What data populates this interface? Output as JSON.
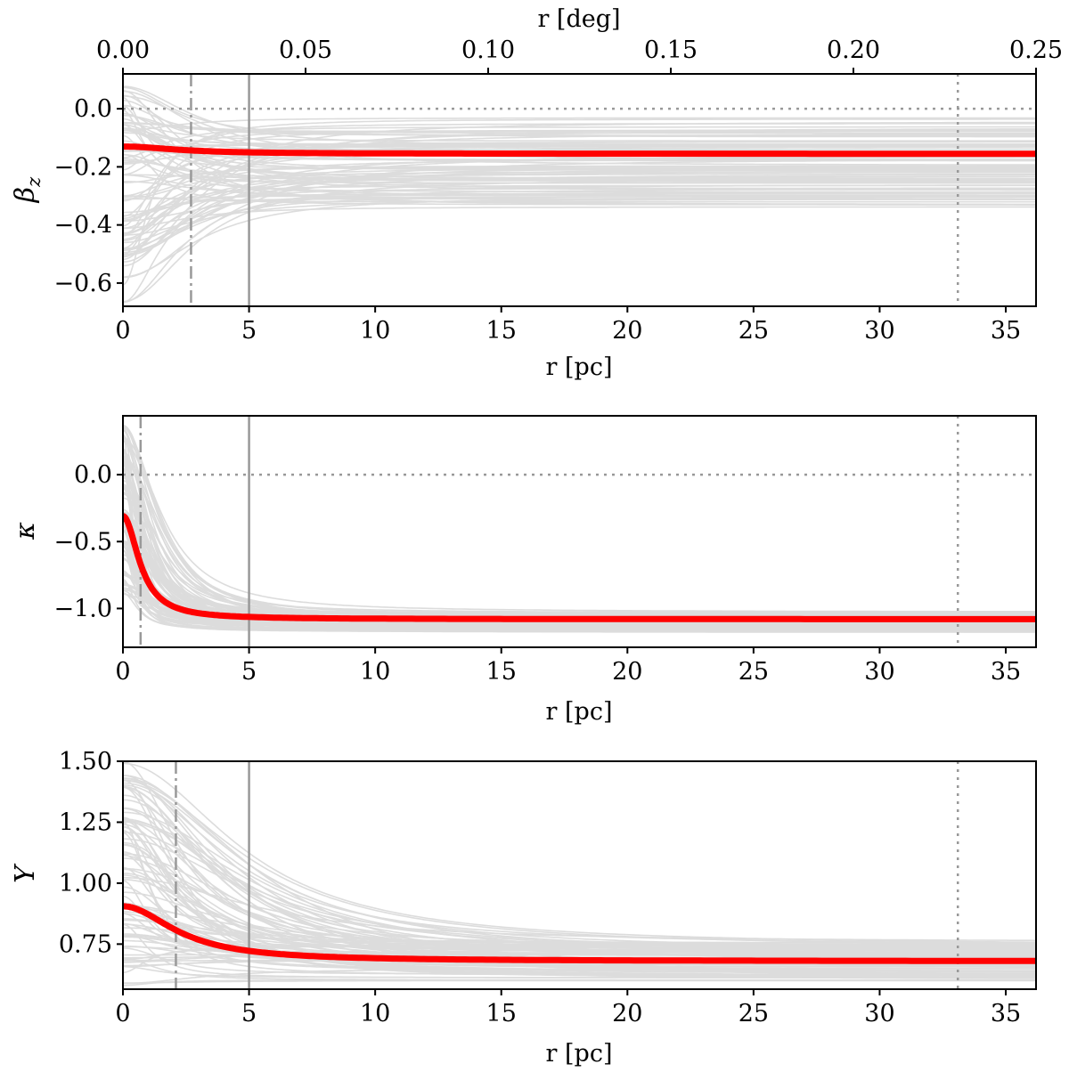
{
  "colors": {
    "background": "#ffffff",
    "ensemble_line": "#dcdcdc",
    "median_line": "#ff0000",
    "reference_line": "#999999",
    "axis": "#000000"
  },
  "top_axis": {
    "label": "r [deg]",
    "range": [
      0,
      0.25
    ],
    "ticks": [
      {
        "value": 0.0,
        "label": "0.00"
      },
      {
        "value": 0.05,
        "label": "0.05"
      },
      {
        "value": 0.1,
        "label": "0.10"
      },
      {
        "value": 0.15,
        "label": "0.15"
      },
      {
        "value": 0.2,
        "label": "0.20"
      },
      {
        "value": 0.25,
        "label": "0.25"
      }
    ]
  },
  "chart_data": [
    {
      "type": "line",
      "id": "beta",
      "ylabel": "β_z",
      "xlabel": "r [pc]",
      "xlim": [
        0,
        36.2
      ],
      "ylim": [
        -0.68,
        0.12
      ],
      "x_ticks": [
        {
          "value": 0,
          "label": "0"
        },
        {
          "value": 5,
          "label": "5"
        },
        {
          "value": 10,
          "label": "10"
        },
        {
          "value": 15,
          "label": "15"
        },
        {
          "value": 20,
          "label": "20"
        },
        {
          "value": 25,
          "label": "25"
        },
        {
          "value": 30,
          "label": "30"
        },
        {
          "value": 35,
          "label": "35"
        }
      ],
      "y_ticks": [
        {
          "value": 0.0,
          "label": "0.0"
        },
        {
          "value": -0.2,
          "label": "−0.2"
        },
        {
          "value": -0.4,
          "label": "−0.4"
        },
        {
          "value": -0.6,
          "label": "−0.6"
        }
      ],
      "reference_lines": {
        "hline_dotted": 0.0,
        "vline_dashdot": 2.7,
        "vline_solid": 5.0,
        "vline_dotted": 33.1
      },
      "median": {
        "center": -0.13,
        "asymptote": -0.155,
        "scale": 2.5,
        "power": 2
      },
      "ensemble_spread": {
        "center_range": [
          -0.67,
          0.08
        ],
        "asymptote_range": [
          -0.34,
          -0.03
        ],
        "scale_range": [
          0.8,
          4.0
        ]
      }
    },
    {
      "type": "line",
      "id": "kappa",
      "ylabel": "κ",
      "xlabel": "r [pc]",
      "xlim": [
        0,
        36.2
      ],
      "ylim": [
        -1.29,
        0.44
      ],
      "x_ticks": [
        {
          "value": 0,
          "label": "0"
        },
        {
          "value": 5,
          "label": "5"
        },
        {
          "value": 10,
          "label": "10"
        },
        {
          "value": 15,
          "label": "15"
        },
        {
          "value": 20,
          "label": "20"
        },
        {
          "value": 25,
          "label": "25"
        },
        {
          "value": 30,
          "label": "30"
        },
        {
          "value": 35,
          "label": "35"
        }
      ],
      "y_ticks": [
        {
          "value": 0.0,
          "label": "0.0"
        },
        {
          "value": -0.5,
          "label": "−0.5"
        },
        {
          "value": -1.0,
          "label": "−1.0"
        }
      ],
      "reference_lines": {
        "hline_dotted": 0.0,
        "vline_dashdot": 0.7,
        "vline_solid": 5.0,
        "vline_dotted": 33.1
      },
      "median": {
        "center": -0.31,
        "asymptote": -1.08,
        "scale": 0.75,
        "power": 2
      },
      "ensemble_spread": {
        "center_range": [
          -0.9,
          0.38
        ],
        "asymptote_range": [
          -1.18,
          -1.02
        ],
        "scale_range": [
          0.4,
          1.8
        ]
      }
    },
    {
      "type": "line",
      "id": "upsilon",
      "ylabel": "Υ",
      "xlabel": "r [pc]",
      "xlim": [
        0,
        36.2
      ],
      "ylim": [
        0.565,
        1.5
      ],
      "x_ticks": [
        {
          "value": 0,
          "label": "0"
        },
        {
          "value": 5,
          "label": "5"
        },
        {
          "value": 10,
          "label": "10"
        },
        {
          "value": 15,
          "label": "15"
        },
        {
          "value": 20,
          "label": "20"
        },
        {
          "value": 25,
          "label": "25"
        },
        {
          "value": 30,
          "label": "30"
        },
        {
          "value": 35,
          "label": "35"
        }
      ],
      "y_ticks": [
        {
          "value": 1.5,
          "label": "1.50"
        },
        {
          "value": 1.25,
          "label": "1.25"
        },
        {
          "value": 1.0,
          "label": "1.00"
        },
        {
          "value": 0.75,
          "label": "0.75"
        }
      ],
      "reference_lines": {
        "vline_dashdot": 2.1,
        "vline_solid": 5.0,
        "vline_dotted": 33.1
      },
      "median": {
        "center": 0.905,
        "asymptote": 0.68,
        "scale": 2.4,
        "power": 2
      },
      "ensemble_spread": {
        "center_range": [
          0.58,
          1.5
        ],
        "asymptote_range": [
          0.6,
          0.76
        ],
        "scale_range": [
          1.0,
          6.0
        ]
      }
    }
  ]
}
